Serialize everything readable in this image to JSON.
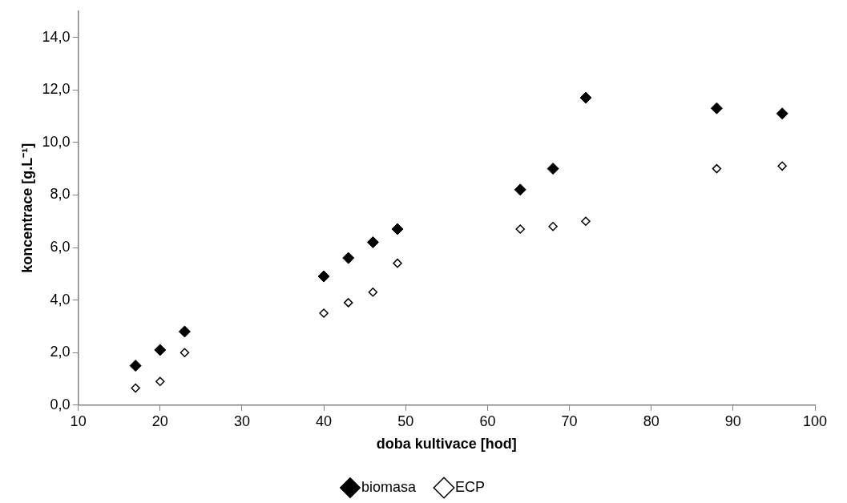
{
  "chart_data": {
    "type": "scatter",
    "xlabel": "doba kultivace [hod]",
    "ylabel": "koncentrace [g.L⁻¹]",
    "x": [
      17,
      20,
      23,
      40,
      43,
      46,
      49,
      64,
      68,
      72,
      88,
      96
    ],
    "series": [
      {
        "name": "biomasa",
        "color": "#000000",
        "values": [
          1.5,
          2.1,
          2.8,
          4.9,
          5.6,
          6.2,
          6.7,
          8.2,
          9.0,
          11.7,
          11.3,
          11.1
        ]
      },
      {
        "name": "ECP",
        "color": "#000000",
        "values": [
          0.65,
          0.9,
          2.0,
          3.5,
          3.9,
          4.3,
          5.4,
          6.7,
          6.8,
          7.0,
          9.0,
          9.1
        ]
      }
    ],
    "xlim": [
      10,
      100
    ],
    "xticks": [
      10,
      20,
      30,
      40,
      50,
      60,
      70,
      80,
      90,
      100
    ],
    "ylim": [
      0,
      15
    ],
    "yticks": [
      {
        "value": 0,
        "label": "0,0"
      },
      {
        "value": 2,
        "label": "2,0"
      },
      {
        "value": 4,
        "label": "4,0"
      },
      {
        "value": 6,
        "label": "6,0"
      },
      {
        "value": 8,
        "label": "8,0"
      },
      {
        "value": 10,
        "label": "10,0"
      },
      {
        "value": 12,
        "label": "12,0"
      },
      {
        "value": 14,
        "label": "14,0"
      }
    ],
    "grid": false,
    "legend": "bottom",
    "marker": "diamond"
  }
}
